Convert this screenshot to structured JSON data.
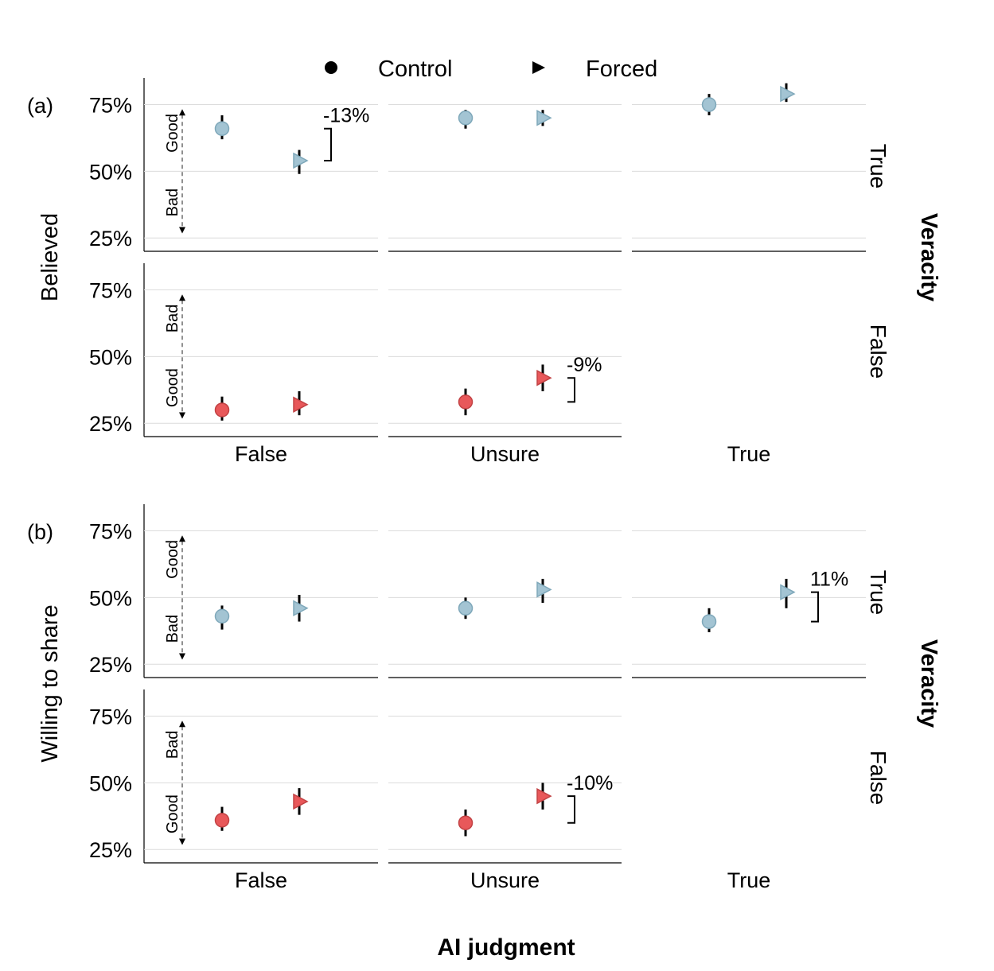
{
  "chart_data": {
    "type": "scatter",
    "xlabel": "AI judgment",
    "x_categories": [
      "False",
      "Unsure",
      "True"
    ],
    "row_strip_title": "Veracity",
    "y_ticks": [
      "25%",
      "50%",
      "75%"
    ],
    "y_tick_values": [
      25,
      50,
      75
    ],
    "ylim": [
      20,
      85
    ],
    "legend": [
      {
        "name": "Control",
        "shape": "circle"
      },
      {
        "name": "Forced",
        "shape": "triangle"
      }
    ],
    "colors": {
      "true": "#a3c4d3",
      "true_stroke": "#7fa8ba",
      "false": "#e8585a",
      "false_stroke": "#c24244"
    },
    "guides": {
      "good": "Good",
      "bad": "Bad"
    },
    "panels": [
      {
        "label": "(a)",
        "ylabel": "Believed",
        "rows": [
          {
            "veracity": "True",
            "cells": [
              {
                "ai": "False",
                "control": {
                  "mean": 66,
                  "lo": 62,
                  "hi": 71
                },
                "forced": {
                  "mean": 54,
                  "lo": 49,
                  "hi": 58
                },
                "annotation": "-13%",
                "guide": "good-top"
              },
              {
                "ai": "Unsure",
                "control": {
                  "mean": 70,
                  "lo": 66,
                  "hi": 73
                },
                "forced": {
                  "mean": 70,
                  "lo": 67,
                  "hi": 73
                }
              },
              {
                "ai": "True",
                "control": {
                  "mean": 75,
                  "lo": 71,
                  "hi": 79
                },
                "forced": {
                  "mean": 79,
                  "lo": 76,
                  "hi": 83
                }
              }
            ]
          },
          {
            "veracity": "False",
            "cells": [
              {
                "ai": "False",
                "control": {
                  "mean": 30,
                  "lo": 26,
                  "hi": 35
                },
                "forced": {
                  "mean": 32,
                  "lo": 28,
                  "hi": 37
                },
                "guide": "bad-top"
              },
              {
                "ai": "Unsure",
                "control": {
                  "mean": 33,
                  "lo": 28,
                  "hi": 38
                },
                "forced": {
                  "mean": 42,
                  "lo": 37,
                  "hi": 47
                },
                "annotation": "-9%"
              }
            ]
          }
        ]
      },
      {
        "label": "(b)",
        "ylabel": "Willing to share",
        "rows": [
          {
            "veracity": "True",
            "cells": [
              {
                "ai": "False",
                "control": {
                  "mean": 43,
                  "lo": 38,
                  "hi": 47
                },
                "forced": {
                  "mean": 46,
                  "lo": 41,
                  "hi": 51
                },
                "guide": "good-top"
              },
              {
                "ai": "Unsure",
                "control": {
                  "mean": 46,
                  "lo": 42,
                  "hi": 50
                },
                "forced": {
                  "mean": 53,
                  "lo": 48,
                  "hi": 57
                }
              },
              {
                "ai": "True",
                "control": {
                  "mean": 41,
                  "lo": 37,
                  "hi": 46
                },
                "forced": {
                  "mean": 52,
                  "lo": 46,
                  "hi": 57
                },
                "annotation": "11%"
              }
            ]
          },
          {
            "veracity": "False",
            "cells": [
              {
                "ai": "False",
                "control": {
                  "mean": 36,
                  "lo": 32,
                  "hi": 41
                },
                "forced": {
                  "mean": 43,
                  "lo": 38,
                  "hi": 48
                },
                "guide": "bad-top"
              },
              {
                "ai": "Unsure",
                "control": {
                  "mean": 35,
                  "lo": 30,
                  "hi": 40
                },
                "forced": {
                  "mean": 45,
                  "lo": 40,
                  "hi": 50
                },
                "annotation": "-10%"
              }
            ]
          }
        ]
      }
    ]
  }
}
